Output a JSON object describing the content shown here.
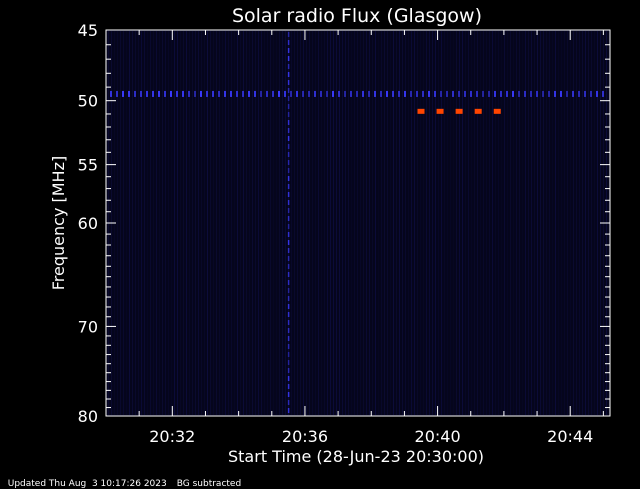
{
  "chart_data": {
    "type": "heatmap",
    "title": "Solar radio Flux (Glasgow)",
    "xlabel": "Start Time (28-Jun-23 20:30:00)",
    "ylabel": "Frequency [MHz]",
    "x_unit": "minutes after 20:30:00",
    "xlim": [
      0,
      15.2
    ],
    "ylim": [
      45,
      80
    ],
    "y_scale": "log",
    "x_ticks": [
      {
        "minute": 2,
        "label": "20:32"
      },
      {
        "minute": 6,
        "label": "20:36"
      },
      {
        "minute": 10,
        "label": "20:40"
      },
      {
        "minute": 14,
        "label": "20:44"
      }
    ],
    "y_ticks": [
      {
        "value": 45,
        "label": "45"
      },
      {
        "value": 50,
        "label": "50"
      },
      {
        "value": 55,
        "label": "55"
      },
      {
        "value": 60,
        "label": "60"
      },
      {
        "value": 70,
        "label": "70"
      },
      {
        "value": 80,
        "label": "80"
      }
    ],
    "features": [
      {
        "kind": "band",
        "frequency_mhz": 49.5,
        "color": "#3a3aff"
      },
      {
        "kind": "vertical-line",
        "minute": 5.5,
        "color": "#3a3aff"
      },
      {
        "kind": "burst",
        "frequency_mhz": 50.8,
        "minute_start": 9.5,
        "minute_end": 11.8,
        "color": "#ff4500"
      }
    ],
    "colors": {
      "background": "#000000",
      "plot": "#05051c",
      "axes": "#ffffff",
      "signal": "#2a2aff",
      "burst": "#ff4500"
    }
  },
  "footer": {
    "updated": "Updated Thu Aug  3 10:17:26 2023",
    "note": "BG subtracted"
  }
}
